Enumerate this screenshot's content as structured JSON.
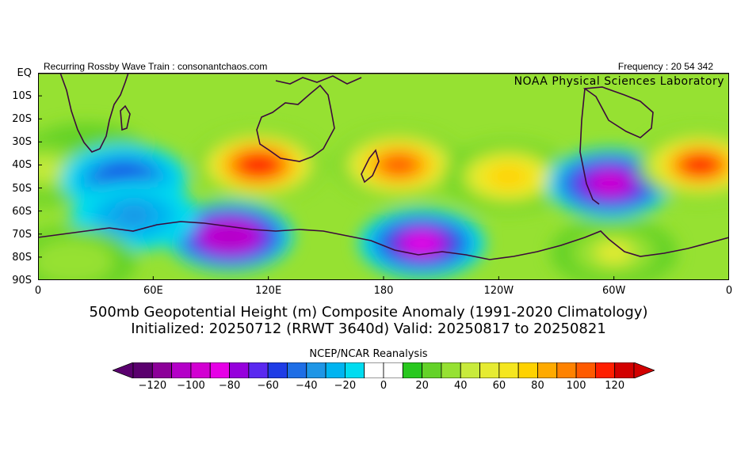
{
  "header": {
    "left": "Recurring Rossby Wave Train : consonantchaos.com",
    "right": "Frequency : 20 54 342"
  },
  "map": {
    "credit": "NOAA Physical Sciences Laboratory",
    "lat_labels": [
      "EQ",
      "10S",
      "20S",
      "30S",
      "40S",
      "50S",
      "60S",
      "70S",
      "80S",
      "90S"
    ],
    "lon_labels": [
      "0",
      "60E",
      "120E",
      "180",
      "120W",
      "60W",
      "0"
    ],
    "lat_range": [
      0,
      -90
    ],
    "lon_range": [
      0,
      360
    ],
    "anomalies": [
      {
        "lon": 25,
        "lat": -37,
        "value": 20
      },
      {
        "lon": 3,
        "lat": -42,
        "value": 40
      },
      {
        "lon": 45,
        "lat": -46,
        "value": -65
      },
      {
        "lon": 115,
        "lat": -40,
        "value": 110
      },
      {
        "lon": 100,
        "lat": -71,
        "value": -115
      },
      {
        "lon": 188,
        "lat": -40,
        "value": 100
      },
      {
        "lon": 200,
        "lat": -74,
        "value": -90
      },
      {
        "lon": 245,
        "lat": -45,
        "value": 70
      },
      {
        "lon": 298,
        "lat": -48,
        "value": -100
      },
      {
        "lon": 345,
        "lat": -40,
        "value": 105
      },
      {
        "lon": 300,
        "lat": -78,
        "value": 45
      },
      {
        "lon": 50,
        "lat": -62,
        "value": -40
      },
      {
        "lon": 18,
        "lat": -82,
        "value": 30
      }
    ]
  },
  "title_line1": "500mb Geopotential Height (m) Composite Anomaly (1991-2020 Climatology)",
  "title_line2": "Initialized: 20250712 (RRWT 3640d) Valid: 20250817 to 20250821",
  "colorbar": {
    "title": "NCEP/NCAR Reanalysis",
    "labels": [
      "-120",
      "-100",
      "-80",
      "-60",
      "-40",
      "-20",
      "0",
      "20",
      "40",
      "60",
      "80",
      "100",
      "120"
    ],
    "colors": [
      "#5a006e",
      "#8c0099",
      "#b400c8",
      "#d200d2",
      "#e600e6",
      "#9600dc",
      "#5a28f0",
      "#1e3ce6",
      "#1e6ee6",
      "#1e96e6",
      "#00b4f0",
      "#00dcf0",
      "#ffffff",
      "#ffffff",
      "#28c81e",
      "#64d228",
      "#96e132",
      "#c8eb3c",
      "#e6eb32",
      "#f5e61e",
      "#ffd200",
      "#ffaa00",
      "#ff8200",
      "#ff5a00",
      "#ff1e00",
      "#d20000"
    ]
  }
}
